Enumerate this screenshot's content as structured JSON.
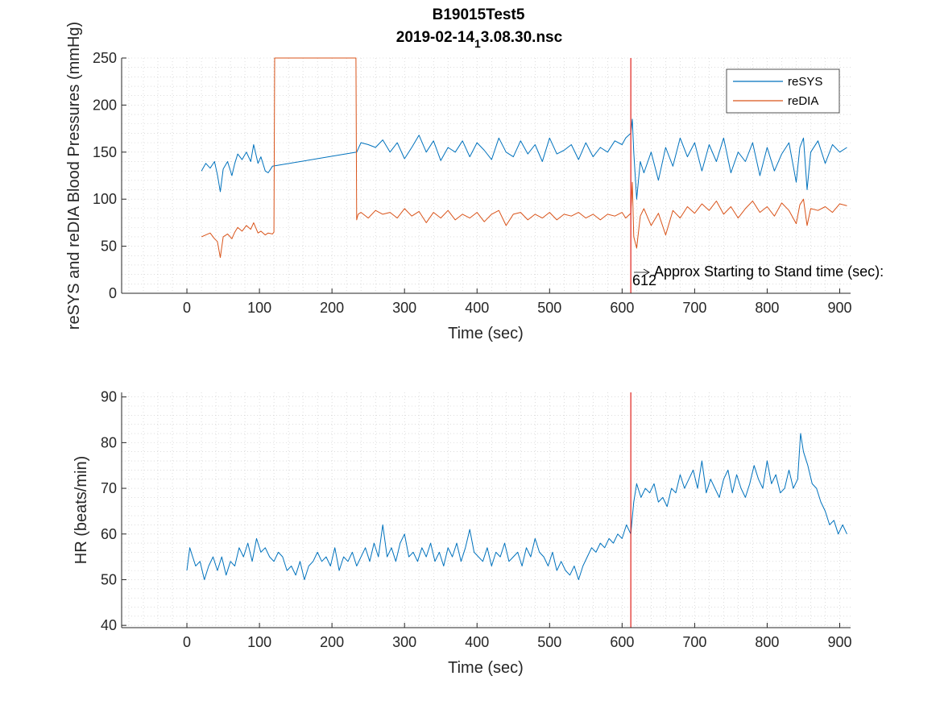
{
  "title": {
    "line1": "B19015Test5",
    "line2_prefix": "2019-02-14",
    "line2_sub": "1",
    "line2_suffix": "3.08.30.nsc"
  },
  "colors": {
    "sys": "#0072BD",
    "dia": "#D95319",
    "marker": "#E0201B",
    "hr": "#0072BD"
  },
  "chart_data": [
    {
      "type": "line",
      "id": "bp",
      "xlabel": "Time (sec)",
      "ylabel": "reSYS and reDIA Blood Pressures (mmHg)",
      "xlim": [
        -90,
        915
      ],
      "ylim": [
        0,
        250
      ],
      "xticks": [
        0,
        100,
        200,
        300,
        400,
        500,
        600,
        700,
        800,
        900
      ],
      "yticks": [
        0,
        50,
        100,
        150,
        200,
        250
      ],
      "grid": "minor dotted",
      "legend": "top-right",
      "series": [
        {
          "name": "reSYS",
          "x": [
            20,
            26,
            32,
            38,
            42,
            46,
            50,
            56,
            62,
            66,
            70,
            76,
            82,
            88,
            92,
            98,
            102,
            108,
            112,
            118,
            234,
            240,
            250,
            260,
            270,
            280,
            290,
            300,
            310,
            320,
            330,
            340,
            350,
            360,
            370,
            380,
            390,
            400,
            410,
            420,
            430,
            440,
            450,
            460,
            470,
            480,
            490,
            500,
            510,
            520,
            530,
            540,
            550,
            560,
            570,
            580,
            590,
            600,
            605,
            612,
            614,
            616,
            620,
            625,
            630,
            640,
            650,
            660,
            670,
            680,
            690,
            700,
            710,
            720,
            730,
            740,
            750,
            760,
            770,
            780,
            790,
            800,
            810,
            820,
            830,
            840,
            845,
            850,
            855,
            860,
            870,
            880,
            890,
            900,
            910
          ],
          "y": [
            130,
            138,
            133,
            140,
            126,
            108,
            132,
            140,
            125,
            138,
            148,
            142,
            150,
            140,
            158,
            138,
            145,
            130,
            128,
            135,
            150,
            160,
            158,
            155,
            163,
            150,
            160,
            143,
            155,
            168,
            150,
            162,
            141,
            155,
            150,
            162,
            145,
            160,
            152,
            142,
            165,
            150,
            145,
            162,
            148,
            158,
            140,
            165,
            148,
            152,
            158,
            142,
            160,
            145,
            155,
            150,
            162,
            158,
            165,
            170,
            185,
            150,
            100,
            140,
            128,
            150,
            120,
            155,
            135,
            165,
            145,
            160,
            130,
            158,
            140,
            165,
            128,
            150,
            140,
            160,
            125,
            155,
            130,
            148,
            160,
            118,
            155,
            165,
            110,
            150,
            162,
            138,
            158,
            150,
            155
          ]
        },
        {
          "name": "reDIA",
          "x": [
            20,
            26,
            32,
            38,
            42,
            46,
            50,
            56,
            62,
            66,
            70,
            76,
            82,
            88,
            92,
            98,
            102,
            108,
            112,
            118,
            120,
            121,
            233,
            234,
            236,
            240,
            250,
            260,
            270,
            280,
            290,
            300,
            310,
            320,
            330,
            340,
            350,
            360,
            370,
            380,
            390,
            400,
            410,
            420,
            430,
            440,
            450,
            460,
            470,
            480,
            490,
            500,
            510,
            520,
            530,
            540,
            550,
            560,
            570,
            580,
            590,
            600,
            605,
            612,
            614,
            616,
            620,
            625,
            630,
            640,
            650,
            660,
            670,
            680,
            690,
            700,
            710,
            720,
            730,
            740,
            750,
            760,
            770,
            780,
            790,
            800,
            810,
            820,
            830,
            840,
            845,
            850,
            855,
            860,
            870,
            880,
            890,
            900,
            910
          ],
          "y": [
            60,
            62,
            64,
            58,
            55,
            38,
            60,
            63,
            58,
            65,
            70,
            66,
            72,
            68,
            75,
            64,
            66,
            62,
            64,
            63,
            65,
            250,
            250,
            78,
            84,
            86,
            80,
            88,
            84,
            86,
            80,
            90,
            82,
            87,
            75,
            86,
            80,
            88,
            78,
            84,
            80,
            86,
            76,
            84,
            88,
            72,
            84,
            86,
            78,
            84,
            80,
            86,
            78,
            84,
            82,
            86,
            80,
            84,
            78,
            84,
            82,
            86,
            80,
            85,
            118,
            60,
            48,
            82,
            90,
            72,
            85,
            62,
            88,
            80,
            92,
            85,
            95,
            88,
            98,
            84,
            92,
            80,
            90,
            98,
            86,
            92,
            82,
            96,
            88,
            74,
            94,
            100,
            72,
            90,
            88,
            92,
            86,
            95,
            93
          ]
        }
      ],
      "annotation": {
        "text": "Approx Starting to Stand time (sec):",
        "value": "612",
        "marker_x": 612
      }
    },
    {
      "type": "line",
      "id": "hr",
      "xlabel": "Time (sec)",
      "ylabel": "HR (beats/min)",
      "xlim": [
        -90,
        915
      ],
      "ylim": [
        39.5,
        91
      ],
      "xticks": [
        0,
        100,
        200,
        300,
        400,
        500,
        600,
        700,
        800,
        900
      ],
      "yticks": [
        40,
        50,
        60,
        70,
        80,
        90
      ],
      "grid": "minor dotted",
      "series": [
        {
          "name": "HR",
          "x": [
            0,
            4,
            8,
            12,
            18,
            24,
            30,
            36,
            42,
            48,
            54,
            60,
            66,
            72,
            78,
            84,
            90,
            96,
            102,
            108,
            114,
            120,
            126,
            132,
            138,
            144,
            150,
            156,
            162,
            168,
            174,
            180,
            186,
            192,
            198,
            204,
            210,
            216,
            222,
            228,
            234,
            240,
            246,
            252,
            258,
            264,
            270,
            276,
            282,
            288,
            294,
            300,
            306,
            312,
            318,
            324,
            330,
            336,
            342,
            348,
            354,
            360,
            366,
            372,
            378,
            384,
            390,
            396,
            402,
            408,
            414,
            420,
            426,
            432,
            438,
            444,
            450,
            456,
            462,
            468,
            474,
            480,
            486,
            492,
            498,
            504,
            510,
            516,
            522,
            528,
            534,
            540,
            546,
            552,
            558,
            564,
            570,
            576,
            582,
            588,
            594,
            600,
            606,
            612,
            616,
            620,
            626,
            632,
            638,
            644,
            650,
            656,
            662,
            668,
            674,
            680,
            686,
            692,
            698,
            704,
            710,
            716,
            722,
            728,
            734,
            740,
            746,
            752,
            758,
            764,
            770,
            776,
            782,
            788,
            794,
            800,
            806,
            812,
            818,
            824,
            830,
            836,
            842,
            846,
            850,
            856,
            862,
            868,
            874,
            880,
            886,
            892,
            898,
            904,
            910
          ],
          "y": [
            52,
            57,
            55,
            53,
            54,
            50,
            53,
            55,
            52,
            55,
            51,
            54,
            53,
            57,
            55,
            58,
            54,
            59,
            56,
            57,
            55,
            54,
            56,
            55,
            52,
            53,
            51,
            54,
            50,
            53,
            54,
            56,
            54,
            55,
            53,
            57,
            52,
            55,
            54,
            56,
            53,
            55,
            57,
            54,
            58,
            55,
            62,
            55,
            57,
            54,
            58,
            60,
            55,
            56,
            54,
            57,
            55,
            58,
            54,
            56,
            53,
            57,
            55,
            58,
            54,
            57,
            61,
            56,
            55,
            54,
            57,
            53,
            56,
            55,
            58,
            54,
            55,
            56,
            53,
            57,
            55,
            59,
            56,
            55,
            53,
            56,
            52,
            54,
            52,
            51,
            53,
            50,
            53,
            55,
            57,
            56,
            58,
            57,
            59,
            58,
            60,
            59,
            62,
            60,
            67,
            71,
            68,
            70,
            69,
            71,
            67,
            68,
            66,
            70,
            69,
            73,
            70,
            72,
            74,
            70,
            76,
            69,
            72,
            70,
            68,
            72,
            74,
            69,
            73,
            70,
            68,
            71,
            75,
            72,
            70,
            76,
            71,
            73,
            69,
            70,
            74,
            70,
            72,
            82,
            78,
            75,
            71,
            70,
            67,
            65,
            62,
            63,
            60,
            62,
            60
          ]
        }
      ],
      "annotation": {
        "marker_x": 612
      }
    }
  ]
}
